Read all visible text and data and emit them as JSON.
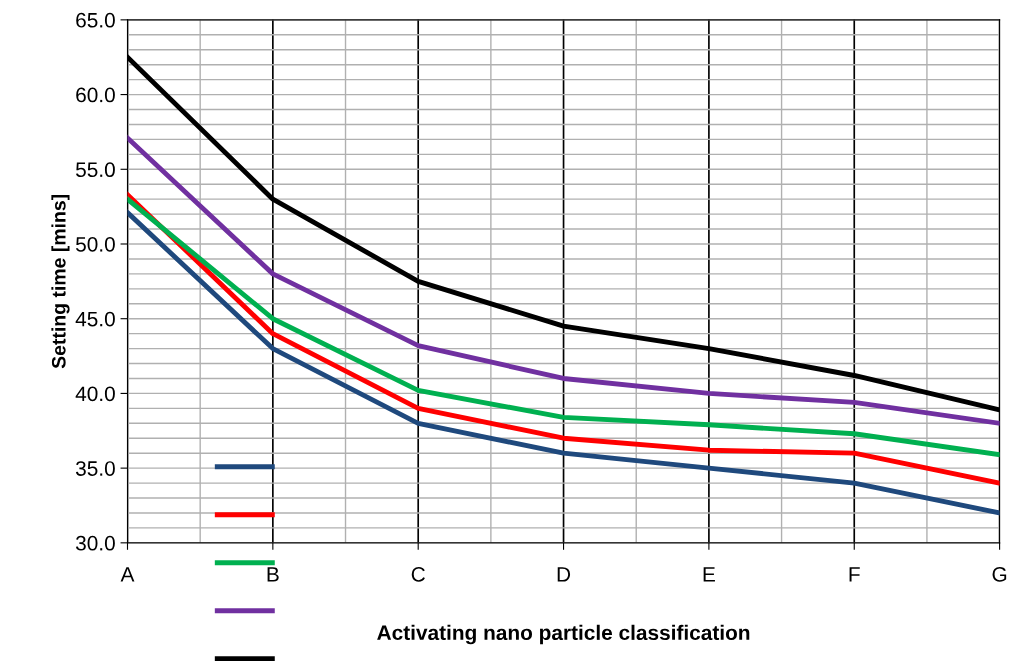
{
  "chart_data": {
    "type": "line",
    "xlabel": "Activating nano particle classification",
    "ylabel": "Setting time [mins]",
    "categories": [
      "A",
      "B",
      "C",
      "D",
      "E",
      "F",
      "G"
    ],
    "series": [
      {
        "color": "#1f497d",
        "values": [
          52.1,
          43,
          38,
          36,
          35,
          34,
          32
        ]
      },
      {
        "color": "#ff0000",
        "values": [
          53.3,
          44,
          39,
          37,
          36.2,
          36,
          34
        ]
      },
      {
        "color": "#00b050",
        "values": [
          53,
          45,
          40.2,
          38.4,
          37.9,
          37.3,
          35.9
        ]
      },
      {
        "color": "#7030a0",
        "values": [
          57.1,
          48,
          43.2,
          41,
          40,
          39.4,
          38
        ]
      },
      {
        "color": "#000000",
        "values": [
          62.5,
          53,
          47.5,
          44.5,
          43,
          41.2,
          38.9
        ]
      }
    ],
    "ylim": [
      30,
      65
    ],
    "yticks": [
      {
        "value": 30,
        "label": "30.0"
      },
      {
        "value": 35,
        "label": "35.0"
      },
      {
        "value": 40,
        "label": "40.0"
      },
      {
        "value": 45,
        "label": "45.0"
      },
      {
        "value": 50,
        "label": "50.0"
      },
      {
        "value": 55,
        "label": "55.0"
      },
      {
        "value": 60,
        "label": "60.0"
      },
      {
        "value": 65,
        "label": "65.0"
      }
    ],
    "grid": true,
    "marker": "none",
    "line_style": "solid"
  }
}
